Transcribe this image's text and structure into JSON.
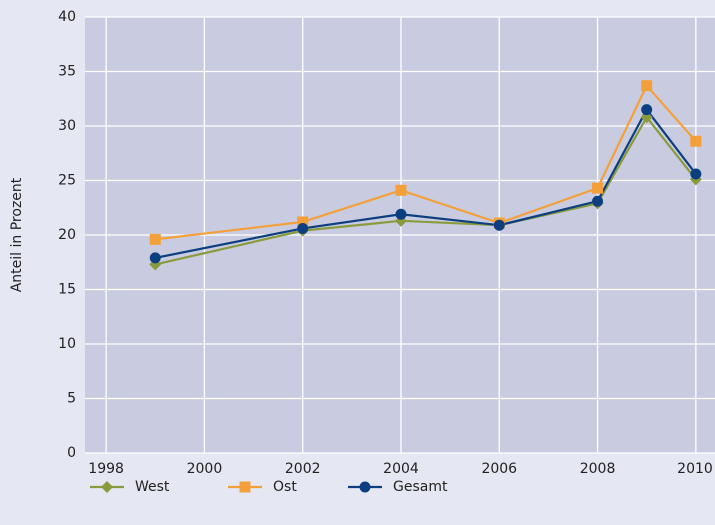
{
  "chart_data": {
    "type": "line",
    "y_label": "Anteil in Prozent",
    "x": [
      1999,
      2002,
      2004,
      2006,
      2008,
      2009,
      2010
    ],
    "series": [
      {
        "name": "West",
        "color": "#8a9b3e",
        "marker": "diamond",
        "values": [
          17.3,
          20.4,
          21.3,
          20.9,
          22.9,
          30.8,
          25.1
        ]
      },
      {
        "name": "Ost",
        "color": "#f4a03a",
        "marker": "square",
        "values": [
          19.6,
          21.2,
          24.1,
          21.1,
          24.3,
          33.7,
          28.6
        ]
      },
      {
        "name": "Gesamt",
        "color": "#0d3f80",
        "marker": "circle",
        "values": [
          17.9,
          20.6,
          21.9,
          20.9,
          23.1,
          31.5,
          25.6
        ]
      }
    ],
    "xlim": [
      1997.57,
      2010.39
    ],
    "xticks": [
      1998,
      2000,
      2002,
      2004,
      2006,
      2008,
      2010
    ],
    "ylim": [
      0,
      40
    ],
    "yticks": [
      0,
      5,
      10,
      15,
      20,
      25,
      30,
      35,
      40
    ],
    "grid": true,
    "legend": "bottom"
  }
}
